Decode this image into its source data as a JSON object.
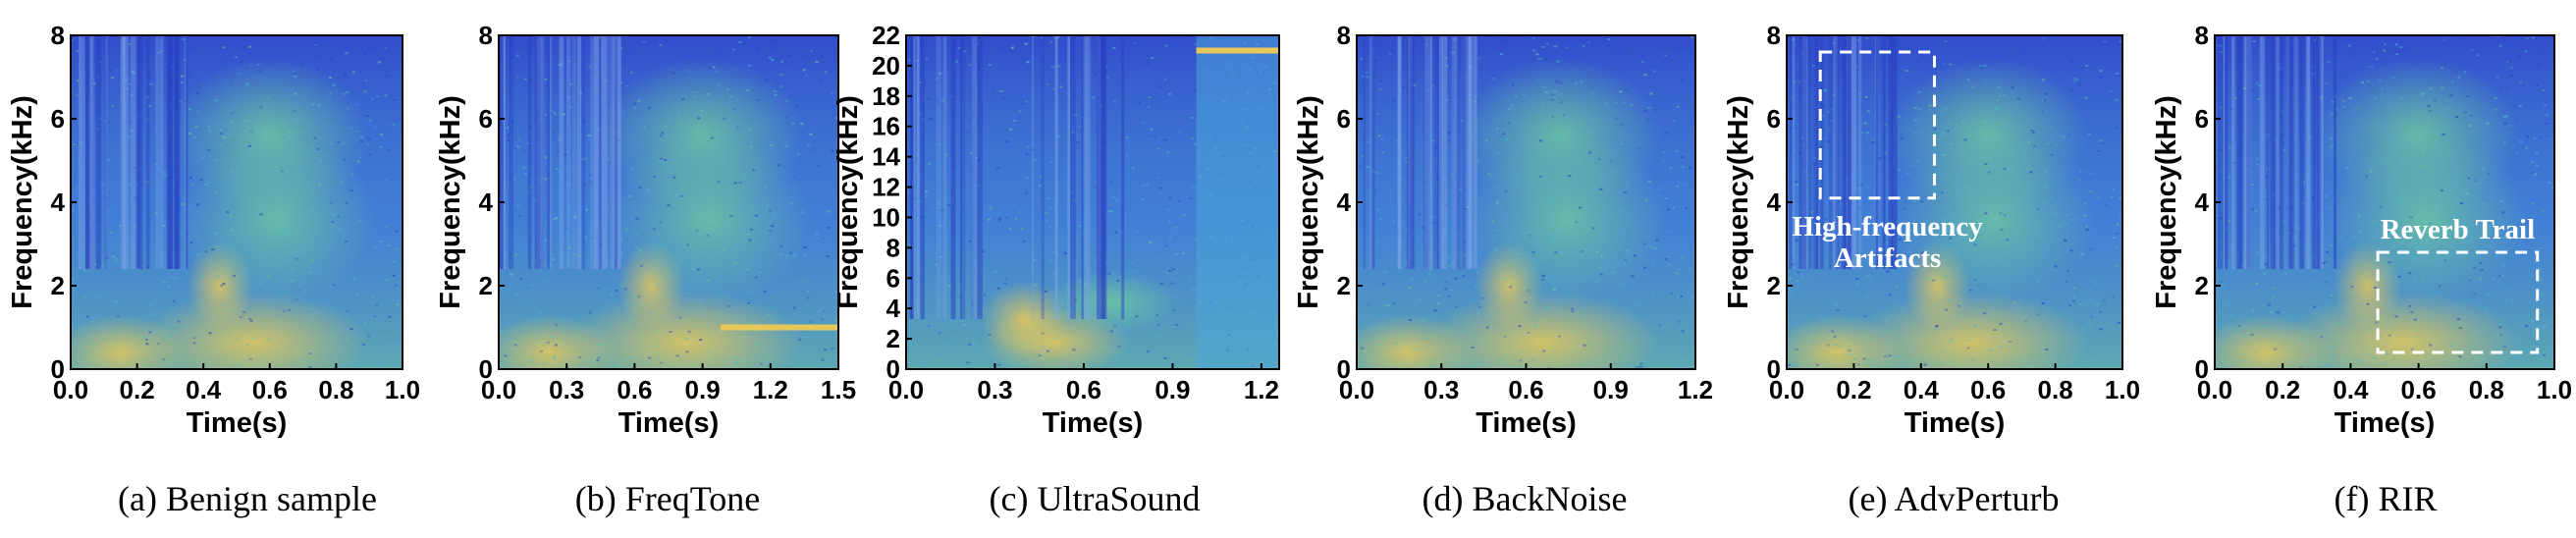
{
  "chart_data": [
    {
      "type": "heatmap",
      "caption": "(a)  Benign sample",
      "xlabel": "Time(s)",
      "ylabel": "Frequency(kHz)",
      "xlim": [
        0,
        1.0
      ],
      "ylim": [
        0,
        8
      ],
      "xticks": [
        "0.0",
        "0.2",
        "0.4",
        "0.6",
        "0.8",
        "1.0"
      ],
      "yticks": [
        "0",
        "2",
        "4",
        "6",
        "8"
      ],
      "annotations": []
    },
    {
      "type": "heatmap",
      "caption": "(b)  FreqTone",
      "xlabel": "Time(s)",
      "ylabel": "Frequency(kHz)",
      "xlim": [
        0,
        1.5
      ],
      "ylim": [
        0,
        8
      ],
      "xticks": [
        "0.0",
        "0.3",
        "0.6",
        "0.9",
        "1.2",
        "1.5"
      ],
      "yticks": [
        "0",
        "2",
        "4",
        "6",
        "8"
      ],
      "annotations": []
    },
    {
      "type": "heatmap",
      "caption": "(c)  UltraSound",
      "xlabel": "Time(s)",
      "ylabel": "Frequency(kHz)",
      "xlim": [
        0,
        1.26
      ],
      "ylim": [
        0,
        22
      ],
      "xticks": [
        "0.0",
        "0.3",
        "0.6",
        "0.9",
        "1.2"
      ],
      "yticks": [
        "0",
        "2",
        "4",
        "6",
        "8",
        "10",
        "12",
        "14",
        "16",
        "18",
        "20",
        "22"
      ],
      "annotations": []
    },
    {
      "type": "heatmap",
      "caption": "(d)  BackNoise",
      "xlabel": "Time(s)",
      "ylabel": "Frequency(kHz)",
      "xlim": [
        0,
        1.2
      ],
      "ylim": [
        0,
        8
      ],
      "xticks": [
        "0.0",
        "0.3",
        "0.6",
        "0.9",
        "1.2"
      ],
      "yticks": [
        "0",
        "2",
        "4",
        "6",
        "8"
      ],
      "annotations": []
    },
    {
      "type": "heatmap",
      "caption": "(e)  AdvPerturb",
      "xlabel": "Time(s)",
      "ylabel": "Frequency(kHz)",
      "xlim": [
        0,
        1.0
      ],
      "ylim": [
        0,
        8
      ],
      "xticks": [
        "0.0",
        "0.2",
        "0.4",
        "0.6",
        "0.8",
        "1.0"
      ],
      "yticks": [
        "0",
        "2",
        "4",
        "6",
        "8"
      ],
      "annotations": [
        {
          "lines": [
            "High-frequency",
            "Artifacts"
          ],
          "box_time": [
            0.1,
            0.44
          ],
          "box_freq": [
            4.1,
            7.6
          ]
        }
      ]
    },
    {
      "type": "heatmap",
      "caption": "(f)  RIR",
      "xlabel": "Time(s)",
      "ylabel": "Frequency(kHz)",
      "xlim": [
        0,
        1.0
      ],
      "ylim": [
        0,
        8
      ],
      "xticks": [
        "0.0",
        "0.2",
        "0.4",
        "0.6",
        "0.8",
        "1.0"
      ],
      "yticks": [
        "0",
        "2",
        "4",
        "6",
        "8"
      ],
      "annotations": [
        {
          "lines": [
            "Reverb Trail"
          ],
          "box_time": [
            0.48,
            0.95
          ],
          "box_freq": [
            0.4,
            2.8
          ]
        }
      ]
    }
  ],
  "colors": {
    "background_blue": "#3a5fdd",
    "dark_blue": "#2a3fc0",
    "cyan": "#4fb8c8",
    "green": "#6cc7a0",
    "yellow": "#e6c85a",
    "annotation": "#ffffff"
  }
}
